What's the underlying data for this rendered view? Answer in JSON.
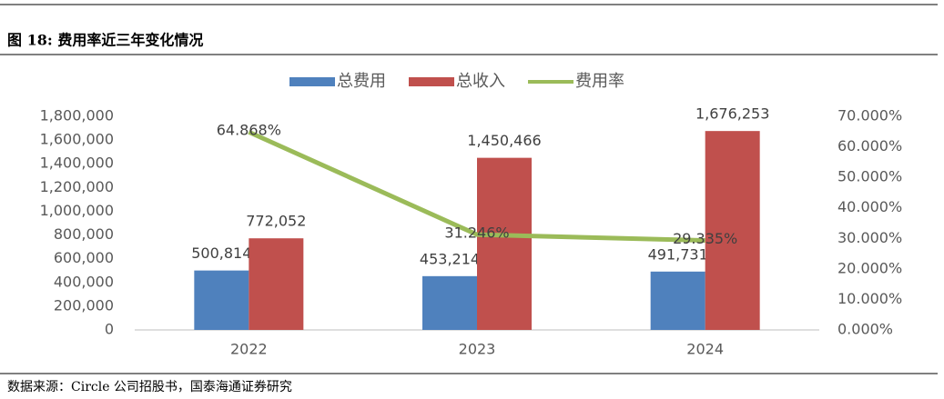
{
  "header": {
    "title": "图 18:  费用率近三年变化情况"
  },
  "chart_data": {
    "type": "bar",
    "categories": [
      "2022",
      "2023",
      "2024"
    ],
    "series": [
      {
        "name": "总费用",
        "color": "#4f81bd",
        "values": [
          500814,
          453214,
          491731
        ],
        "value_labels": [
          "500,814",
          "453,214",
          "491,731"
        ]
      },
      {
        "name": "总收入",
        "color": "#c0504d",
        "values": [
          772052,
          1450466,
          1676253
        ],
        "value_labels": [
          "772,052",
          "1,450,466",
          "1,676,253"
        ]
      },
      {
        "name": "费用率",
        "color": "#9bbb59",
        "type": "line",
        "axis": "y2",
        "values": [
          64.868,
          31.246,
          29.335
        ],
        "value_labels": [
          "64.868%",
          "31.246%",
          "29.335%"
        ]
      }
    ],
    "ylim": [
      0,
      1800000
    ],
    "yticks": [
      0,
      {
        "value": 200000,
        "label": "200,000"
      },
      {
        "value": 400000,
        "label": "400,000"
      },
      {
        "value": 600000,
        "label": "600,000"
      },
      {
        "value": 800000,
        "label": "800,000"
      },
      {
        "value": 1000000,
        "label": "1,000,000"
      },
      {
        "value": 1200000,
        "label": "1,200,000"
      },
      {
        "value": 1400000,
        "label": "1,400,000"
      },
      {
        "value": 1600000,
        "label": "1,600,000"
      },
      {
        "value": 1800000,
        "label": "1,800,000"
      }
    ],
    "y2lim": [
      0,
      70
    ],
    "y2ticks": [
      {
        "value": 0,
        "label": "0.000%"
      },
      {
        "value": 10,
        "label": "10.000%"
      },
      {
        "value": 20,
        "label": "20.000%"
      },
      {
        "value": 30,
        "label": "30.000%"
      },
      {
        "value": 40,
        "label": "40.000%"
      },
      {
        "value": 50,
        "label": "50.000%"
      },
      {
        "value": 60,
        "label": "60.000%"
      },
      {
        "value": 70,
        "label": "70.000%"
      }
    ],
    "grid": false,
    "legend": "top"
  },
  "footer": {
    "source": "数据来源：Circle 公司招股书，国泰海通证券研究"
  }
}
